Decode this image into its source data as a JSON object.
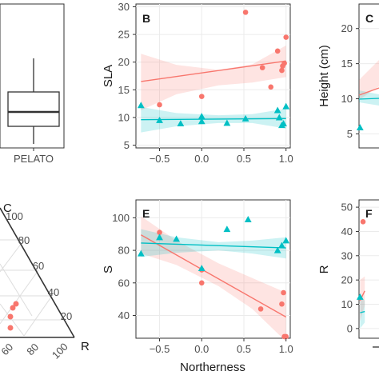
{
  "colors": {
    "red": "#F8766D",
    "teal": "#00BFC4",
    "red_band": "#F8766D",
    "teal_band": "#00BFC4",
    "panel_bg": "#FFFFFF",
    "grid": "#EBEBEB",
    "border": "#333333"
  },
  "chart_data": [
    {
      "panel": "A",
      "type": "box",
      "label": "",
      "categories": [
        "PELATO"
      ],
      "box": {
        "min": 10.8,
        "q1": 12.9,
        "median": 14.2,
        "q3": 15.9,
        "max": 21.5
      },
      "ylim": [
        9.5,
        23.5
      ],
      "grid": true
    },
    {
      "panel": "B",
      "type": "scatter",
      "label": "B",
      "xlabel": "",
      "ylabel": "SLA",
      "xlim": [
        -0.78,
        1.05
      ],
      "ylim": [
        4.5,
        30.5
      ],
      "xticks": [
        -0.5,
        0.0,
        0.5,
        1.0
      ],
      "xtick_labels": [
        "−0.5",
        "0.0",
        "0.5",
        "1.0"
      ],
      "yticks": [
        5,
        10,
        15,
        20,
        25,
        30
      ],
      "grid": true,
      "series": [
        {
          "marker": "circle",
          "color_key": "red",
          "points": [
            [
              -0.5,
              12.3
            ],
            [
              0.0,
              13.8
            ],
            [
              0.52,
              29.0
            ],
            [
              0.72,
              19.0
            ],
            [
              0.82,
              15.5
            ],
            [
              0.9,
              22.0
            ],
            [
              0.95,
              18.5
            ],
            [
              0.96,
              19.3
            ],
            [
              0.98,
              19.8
            ],
            [
              1.0,
              24.5
            ]
          ],
          "fit": [
            [
              -0.72,
              16.5
            ],
            [
              1.0,
              20.2
            ]
          ],
          "band_upper": [
            [
              -0.72,
              21.5
            ],
            [
              -0.3,
              19.5
            ],
            [
              0.2,
              18.6
            ],
            [
              0.6,
              19.6
            ],
            [
              1.0,
              23.0
            ]
          ],
          "band_lower": [
            [
              -0.72,
              11.3
            ],
            [
              -0.3,
              14.2
            ],
            [
              0.2,
              15.8
            ],
            [
              0.6,
              16.3
            ],
            [
              1.0,
              17.3
            ]
          ]
        },
        {
          "marker": "triangle",
          "color_key": "teal",
          "points": [
            [
              -0.72,
              12.2
            ],
            [
              -0.5,
              9.5
            ],
            [
              -0.25,
              8.9
            ],
            [
              0.0,
              10.2
            ],
            [
              0.0,
              9.3
            ],
            [
              0.3,
              9.0
            ],
            [
              0.52,
              9.8
            ],
            [
              0.9,
              11.3
            ],
            [
              0.92,
              10.0
            ],
            [
              0.95,
              8.6
            ],
            [
              0.97,
              8.9
            ],
            [
              1.0,
              12.0
            ]
          ],
          "fit": [
            [
              -0.72,
              9.6
            ],
            [
              1.0,
              9.8
            ]
          ],
          "band_upper": [
            [
              -0.72,
              11.9
            ],
            [
              -0.3,
              10.8
            ],
            [
              0.2,
              10.4
            ],
            [
              0.6,
              10.6
            ],
            [
              1.0,
              11.6
            ]
          ],
          "band_lower": [
            [
              -0.72,
              7.3
            ],
            [
              -0.3,
              8.4
            ],
            [
              0.2,
              9.0
            ],
            [
              0.6,
              9.0
            ],
            [
              1.0,
              8.0
            ]
          ]
        }
      ]
    },
    {
      "panel": "C",
      "type": "scatter",
      "label": "C",
      "ylabel": "Height (cm)",
      "ylim": [
        3.0,
        23.5
      ],
      "yticks": [
        5,
        10,
        15,
        20
      ],
      "grid": true,
      "series": [
        {
          "marker": "triangle",
          "color_key": "teal",
          "points": [
            [
              -0.72,
              5.9
            ]
          ]
        }
      ]
    },
    {
      "panel": "D",
      "type": "ternary",
      "labels": {
        "top_vertex": "C",
        "right_vertex": "R"
      },
      "right_axis_ticks": [
        "100",
        "80",
        "60",
        "40",
        "20"
      ],
      "bottom_axis_ticks": [
        "60",
        "80",
        "100"
      ]
    },
    {
      "panel": "E",
      "type": "scatter",
      "label": "E",
      "xlabel": "Northerness",
      "ylabel": "S",
      "xlim": [
        -0.78,
        1.05
      ],
      "ylim": [
        26,
        111
      ],
      "xticks": [
        -0.5,
        0.0,
        0.5,
        1.0
      ],
      "xtick_labels": [
        "−0.5",
        "0.0",
        "0.5",
        "1.0"
      ],
      "yticks": [
        40,
        60,
        80,
        100
      ],
      "grid": true,
      "series": [
        {
          "marker": "circle",
          "color_key": "red",
          "points": [
            [
              -0.5,
              91
            ],
            [
              0.0,
              60
            ],
            [
              0.0,
              68
            ],
            [
              0.7,
              44
            ],
            [
              0.95,
              47
            ],
            [
              0.97,
              54
            ],
            [
              0.98,
              27
            ],
            [
              1.0,
              27
            ]
          ],
          "fit": [
            [
              -0.72,
              89.5
            ],
            [
              1.0,
              39.0
            ]
          ],
          "band_upper": [
            [
              -0.72,
              101
            ],
            [
              -0.3,
              86
            ],
            [
              0.2,
              72
            ],
            [
              0.6,
              63
            ],
            [
              1.0,
              54
            ]
          ],
          "band_lower": [
            [
              -0.72,
              78
            ],
            [
              -0.3,
              71
            ],
            [
              0.2,
              58
            ],
            [
              0.6,
              44
            ],
            [
              1.0,
              24
            ]
          ]
        },
        {
          "marker": "triangle",
          "color_key": "teal",
          "points": [
            [
              -0.72,
              78
            ],
            [
              -0.5,
              88
            ],
            [
              -0.3,
              87
            ],
            [
              0.0,
              69
            ],
            [
              0.3,
              93
            ],
            [
              0.55,
              99
            ],
            [
              0.9,
              80
            ],
            [
              0.95,
              83
            ],
            [
              1.0,
              86
            ]
          ],
          "fit": [
            [
              -0.72,
              84.5
            ],
            [
              1.0,
              81.5
            ]
          ],
          "band_upper": [
            [
              -0.72,
              93
            ],
            [
              -0.3,
              88
            ],
            [
              0.2,
              85
            ],
            [
              0.6,
              86
            ],
            [
              1.0,
              88
            ]
          ],
          "band_lower": [
            [
              -0.72,
              76
            ],
            [
              -0.3,
              78.5
            ],
            [
              0.2,
              80
            ],
            [
              0.6,
              78
            ],
            [
              1.0,
              75
            ]
          ]
        }
      ]
    },
    {
      "panel": "F",
      "type": "scatter",
      "label": "F",
      "ylabel": "R",
      "ylim": [
        -4,
        53
      ],
      "yticks": [
        0,
        10,
        20,
        30,
        40,
        50
      ],
      "grid": true,
      "series": [
        {
          "marker": "triangle",
          "color_key": "teal",
          "points": [
            [
              -0.72,
              13
            ]
          ],
          "fit": [
            [
              -0.72,
              6.5
            ],
            [
              -0.45,
              7.0
            ]
          ],
          "band_upper": [
            [
              -0.72,
              13
            ],
            [
              -0.45,
              11.5
            ]
          ],
          "band_lower": [
            [
              -0.72,
              0
            ],
            [
              -0.45,
              2.5
            ]
          ]
        },
        {
          "marker": "circle",
          "color_key": "red",
          "points": [
            [
              -0.55,
              44
            ]
          ],
          "fit": [
            [
              -0.72,
              11.5
            ],
            [
              -0.45,
              15.5
            ]
          ],
          "band_upper": [
            [
              -0.72,
              20
            ],
            [
              -0.45,
              21.5
            ]
          ],
          "band_lower": [
            [
              -0.72,
              3
            ],
            [
              -0.45,
              9.5
            ]
          ]
        }
      ]
    }
  ]
}
